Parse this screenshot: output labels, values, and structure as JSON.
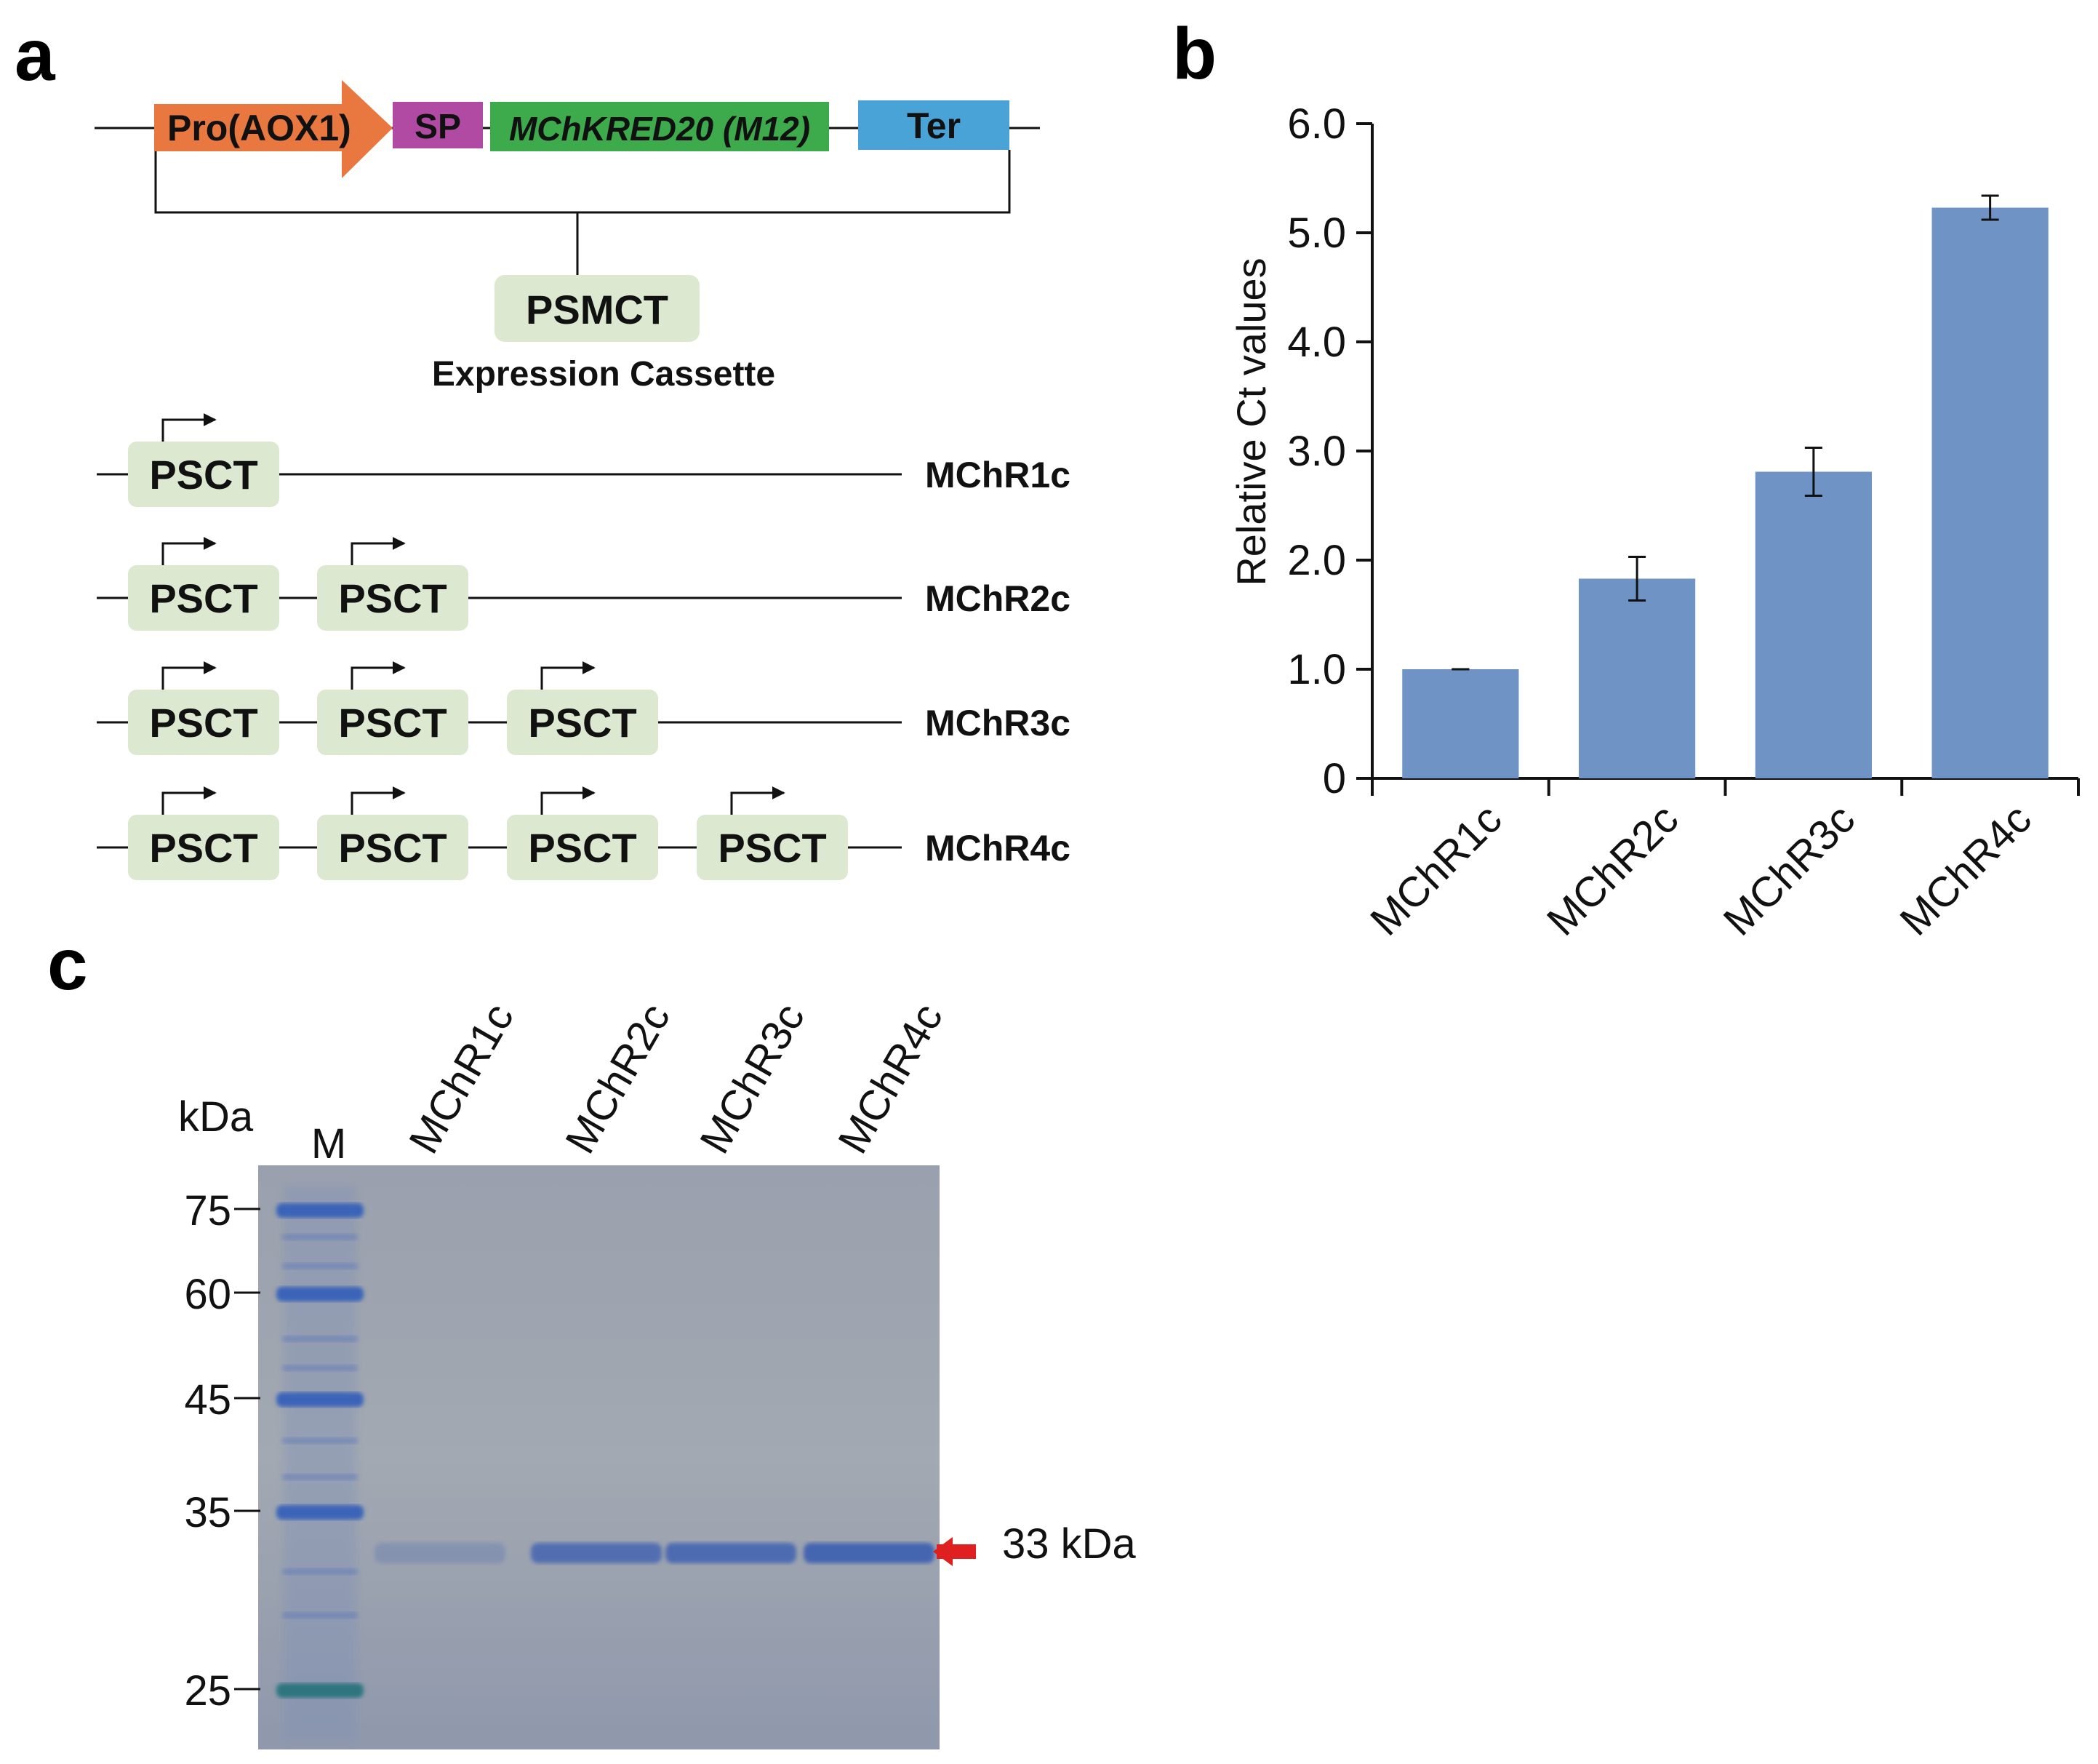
{
  "panels": {
    "a": "a",
    "b": "b",
    "c": "c"
  },
  "panel_a": {
    "cassette": {
      "promoter": "Pro(AOX1)",
      "signal_peptide": "SP",
      "gene": "MChKRED20 (M12)",
      "terminator": "Ter"
    },
    "psmct": {
      "label": "PSMCT",
      "caption": "Expression Cassette"
    },
    "unit_label": "PSCT",
    "constructs": [
      {
        "name": "MChR1c",
        "copies": 1
      },
      {
        "name": "MChR2c",
        "copies": 2
      },
      {
        "name": "MChR3c",
        "copies": 3
      },
      {
        "name": "MChR4c",
        "copies": 4
      }
    ],
    "colors": {
      "promoter": "#e8783f",
      "signal_peptide": "#b04aa3",
      "gene": "#3dab4c",
      "terminator": "#4aa3d6",
      "psct_box": "#dde8d0"
    }
  },
  "chart_data": {
    "type": "bar",
    "categories": [
      "MChR1c",
      "MChR2c",
      "MChR3c",
      "MChR4c"
    ],
    "values": [
      1.0,
      1.83,
      2.81,
      5.23
    ],
    "errors": [
      0.0,
      0.2,
      0.22,
      0.11
    ],
    "ylabel": "Relative Ct values",
    "ylim": [
      0,
      6.0
    ],
    "yticks": [
      "0",
      "1.0",
      "2.0",
      "3.0",
      "4.0",
      "5.0",
      "6.0"
    ],
    "bar_color": "#6e93c4"
  },
  "panel_c": {
    "kda_label": "kDa",
    "marker_lane": "M",
    "lanes": [
      "MChR1c",
      "MChR2c",
      "MChR3c",
      "MChR4c"
    ],
    "marker_bands": [
      "75",
      "60",
      "45",
      "35",
      "25"
    ],
    "target_band": "33 kDa",
    "lane_band_strength": [
      0.25,
      0.8,
      0.85,
      0.95
    ],
    "arrow_color": "#e02020"
  }
}
